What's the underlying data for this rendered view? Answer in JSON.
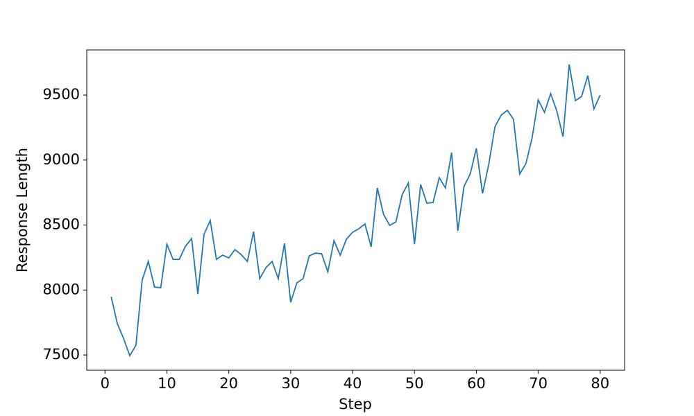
{
  "chart_data": {
    "type": "line",
    "x_label": "Step",
    "y_label": "Response Length",
    "x": [
      1,
      2,
      3,
      4,
      5,
      6,
      7,
      8,
      9,
      10,
      11,
      12,
      13,
      14,
      15,
      16,
      17,
      18,
      19,
      20,
      21,
      22,
      23,
      24,
      25,
      26,
      27,
      28,
      29,
      30,
      31,
      32,
      33,
      34,
      35,
      36,
      37,
      38,
      39,
      40,
      41,
      42,
      43,
      44,
      45,
      46,
      47,
      48,
      49,
      50,
      51,
      52,
      53,
      54,
      55,
      56,
      57,
      58,
      59,
      60,
      61,
      62,
      63,
      64,
      65,
      66,
      67,
      68,
      69,
      70,
      71,
      72,
      73,
      74,
      75,
      76,
      77,
      78,
      79,
      80
    ],
    "series": [
      {
        "color": "#1f77b4",
        "values": [
          7948,
          7740,
          7628,
          7495,
          7575,
          8076,
          8220,
          8023,
          8017,
          8353,
          8236,
          8236,
          8337,
          8396,
          7969,
          8428,
          8535,
          8236,
          8268,
          8247,
          8311,
          8273,
          8220,
          8449,
          8087,
          8172,
          8220,
          8087,
          8359,
          7905,
          8055,
          8087,
          8263,
          8284,
          8279,
          8140,
          8380,
          8268,
          8391,
          8444,
          8471,
          8508,
          8332,
          8785,
          8583,
          8497,
          8524,
          8732,
          8823,
          8353,
          8812,
          8668,
          8673,
          8865,
          8785,
          9057,
          8455,
          8796,
          8892,
          9089,
          8743,
          8967,
          9255,
          9345,
          9383,
          9313,
          8892,
          8972,
          9169,
          9463,
          9367,
          9511,
          9377,
          9180,
          9735,
          9457,
          9489,
          9649,
          9393,
          9500
        ]
      }
    ],
    "xlim": [
      -2.95,
      83.95
    ],
    "xticks": [
      0,
      10,
      20,
      30,
      40,
      50,
      60,
      70,
      80
    ],
    "ylim": [
      7383,
      9847
    ],
    "yticks": [
      7500,
      8000,
      8500,
      9000,
      9500
    ],
    "grid": false
  }
}
